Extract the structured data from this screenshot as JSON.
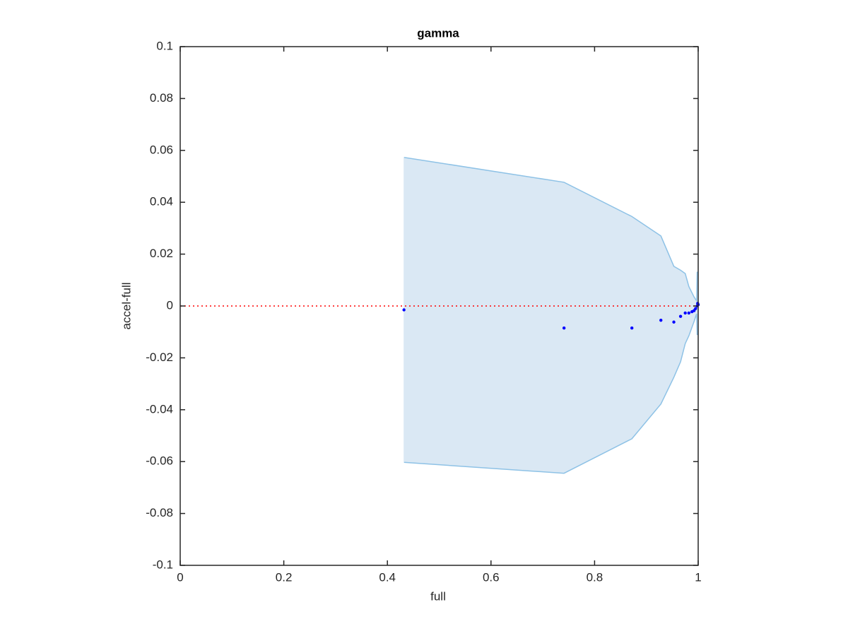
{
  "chart_data": {
    "type": "scatter",
    "title": "gamma",
    "x_label": "full",
    "y_label": "accel-full",
    "xlim": [
      0,
      1
    ],
    "ylim": [
      -0.1,
      0.1
    ],
    "xticks": [
      0,
      0.2,
      0.4,
      0.6,
      0.8,
      1
    ],
    "yticks": [
      -0.1,
      -0.08,
      -0.06,
      -0.04,
      -0.02,
      0,
      0.02,
      0.04,
      0.06,
      0.08,
      0.1
    ],
    "x": [
      0.432,
      0.741,
      0.872,
      0.928,
      0.953,
      0.966,
      0.975,
      0.982,
      0.988,
      0.992,
      0.995,
      0.998,
      0.999,
      1.0
    ],
    "values": [
      -0.0015,
      -0.0085,
      -0.0085,
      -0.0055,
      -0.0062,
      -0.004,
      -0.0027,
      -0.0027,
      -0.0022,
      -0.0018,
      -0.001,
      0,
      0.001,
      0.0005
    ],
    "color": "#0000ff",
    "band": {
      "x": [
        0.432,
        0.741,
        0.872,
        0.928,
        0.953,
        0.966,
        0.975,
        0.982,
        0.992,
        0.997,
        0.998,
        1.0
      ],
      "upper": [
        0.0573,
        0.0477,
        0.0345,
        0.027,
        0.0153,
        0.0138,
        0.0125,
        0.0075,
        0.0035,
        0.002,
        0.013,
        0.013
      ],
      "lower": [
        -0.0603,
        -0.0645,
        -0.0512,
        -0.0378,
        -0.0275,
        -0.0215,
        -0.0145,
        -0.0115,
        -0.006,
        -0.003,
        -0.011,
        -0.011
      ],
      "fill": "#dae8f4",
      "edge": "#8ec2e6"
    },
    "reference_line": {
      "y": 0,
      "color": "#ff0000"
    }
  }
}
